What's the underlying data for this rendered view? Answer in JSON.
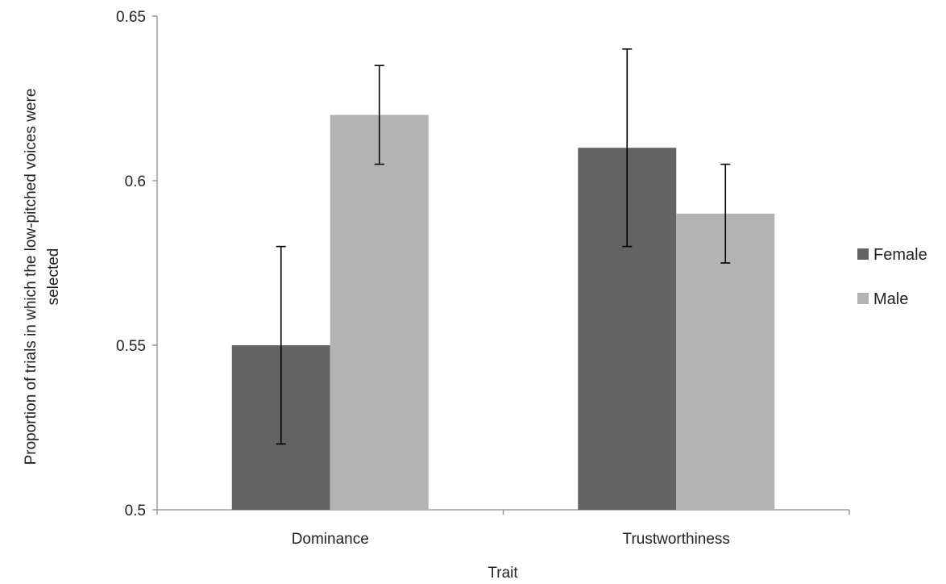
{
  "chart_data": {
    "type": "bar",
    "categories": [
      "Dominance",
      "Trustworthiness"
    ],
    "series": [
      {
        "name": "Female",
        "color": "#636363",
        "values": [
          0.55,
          0.61
        ],
        "error_low": [
          0.52,
          0.58
        ],
        "error_high": [
          0.58,
          0.64
        ]
      },
      {
        "name": "Male",
        "color": "#b3b3b3",
        "values": [
          0.62,
          0.59
        ],
        "error_low": [
          0.605,
          0.575
        ],
        "error_high": [
          0.635,
          0.605
        ]
      }
    ],
    "title": "",
    "xlabel": "Trait",
    "ylabel": "Proportion of trials in which the low-pitched voices were selected",
    "ylim": [
      0.5,
      0.65
    ],
    "yticks": [
      0.5,
      0.55,
      0.6,
      0.65
    ],
    "ytick_labels": [
      "0.5",
      "0.55",
      "0.6",
      "0.65"
    ],
    "grid": false,
    "legend": "right"
  }
}
